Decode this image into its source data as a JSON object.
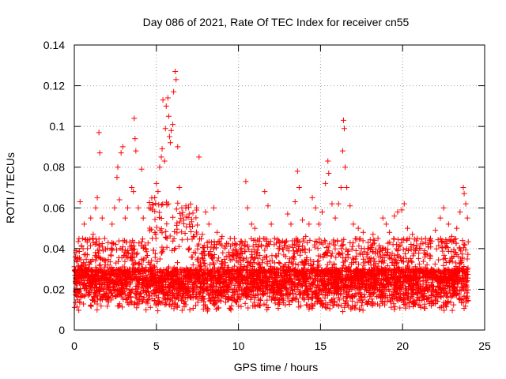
{
  "chart_data": {
    "type": "scatter",
    "title": "Day 086 of 2021, Rate Of TEC Index for receiver cn55",
    "xlabel": "GPS time / hours",
    "ylabel": "ROTI / TECUs",
    "xlim": [
      0,
      25
    ],
    "ylim": [
      0,
      0.14
    ],
    "xticks": [
      0,
      5,
      10,
      15,
      20,
      25
    ],
    "xtick_labels": [
      "0",
      "5",
      "10",
      "15",
      "20",
      "25"
    ],
    "yticks": [
      0,
      0.02,
      0.04,
      0.06,
      0.08,
      0.1,
      0.12,
      0.14
    ],
    "ytick_labels": [
      "0",
      "0.02",
      "0.04",
      "0.06",
      "0.08",
      "0.1",
      "0.12",
      "0.14"
    ],
    "grid": true,
    "marker": "plus",
    "color": "#ff0000",
    "x_coverage_hours": [
      0,
      24
    ],
    "baseline_range": [
      0.005,
      0.03
    ],
    "series": [
      {
        "name": "ROTI",
        "points": [
          [
            0.1,
            0.038
          ],
          [
            0.2,
            0.035
          ],
          [
            0.35,
            0.063
          ],
          [
            0.5,
            0.045
          ],
          [
            0.6,
            0.052
          ],
          [
            0.8,
            0.04
          ],
          [
            1.0,
            0.055
          ],
          [
            1.15,
            0.047
          ],
          [
            1.3,
            0.06
          ],
          [
            1.4,
            0.065
          ],
          [
            1.5,
            0.097
          ],
          [
            1.55,
            0.087
          ],
          [
            1.7,
            0.055
          ],
          [
            1.85,
            0.045
          ],
          [
            2.05,
            0.032
          ],
          [
            2.3,
            0.052
          ],
          [
            2.45,
            0.06
          ],
          [
            2.6,
            0.075
          ],
          [
            2.65,
            0.08
          ],
          [
            2.75,
            0.064
          ],
          [
            2.85,
            0.087
          ],
          [
            2.95,
            0.09
          ],
          [
            3.1,
            0.055
          ],
          [
            3.25,
            0.06
          ],
          [
            3.5,
            0.07
          ],
          [
            3.6,
            0.068
          ],
          [
            3.65,
            0.104
          ],
          [
            3.7,
            0.094
          ],
          [
            3.75,
            0.088
          ],
          [
            3.9,
            0.06
          ],
          [
            4.1,
            0.079
          ],
          [
            4.2,
            0.055
          ],
          [
            4.35,
            0.04
          ],
          [
            4.55,
            0.06
          ],
          [
            4.75,
            0.045
          ],
          [
            4.9,
            0.065
          ],
          [
            5.0,
            0.072
          ],
          [
            5.1,
            0.068
          ],
          [
            5.2,
            0.08
          ],
          [
            5.3,
            0.085
          ],
          [
            5.35,
            0.089
          ],
          [
            5.4,
            0.113
          ],
          [
            5.5,
            0.083
          ],
          [
            5.55,
            0.099
          ],
          [
            5.6,
            0.11
          ],
          [
            5.7,
            0.114
          ],
          [
            5.75,
            0.105
          ],
          [
            5.8,
            0.095
          ],
          [
            5.85,
            0.092
          ],
          [
            5.9,
            0.098
          ],
          [
            6.0,
            0.101
          ],
          [
            6.05,
            0.117
          ],
          [
            6.15,
            0.127
          ],
          [
            6.2,
            0.123
          ],
          [
            6.3,
            0.09
          ],
          [
            6.4,
            0.07
          ],
          [
            6.55,
            0.06
          ],
          [
            6.8,
            0.061
          ],
          [
            7.0,
            0.057
          ],
          [
            7.2,
            0.051
          ],
          [
            7.45,
            0.06
          ],
          [
            7.6,
            0.085
          ],
          [
            7.8,
            0.047
          ],
          [
            8.0,
            0.058
          ],
          [
            8.2,
            0.052
          ],
          [
            8.5,
            0.06
          ],
          [
            8.7,
            0.048
          ],
          [
            9.0,
            0.046
          ],
          [
            9.2,
            0.041
          ],
          [
            9.5,
            0.045
          ],
          [
            9.7,
            0.036
          ],
          [
            9.9,
            0.042
          ],
          [
            10.2,
            0.04
          ],
          [
            10.45,
            0.073
          ],
          [
            10.55,
            0.06
          ],
          [
            10.8,
            0.052
          ],
          [
            11.0,
            0.05
          ],
          [
            11.3,
            0.045
          ],
          [
            11.6,
            0.068
          ],
          [
            11.8,
            0.061
          ],
          [
            12.0,
            0.052
          ],
          [
            12.2,
            0.045
          ],
          [
            12.5,
            0.04
          ],
          [
            12.8,
            0.043
          ],
          [
            13.0,
            0.057
          ],
          [
            13.2,
            0.052
          ],
          [
            13.45,
            0.063
          ],
          [
            13.6,
            0.078
          ],
          [
            13.7,
            0.07
          ],
          [
            13.9,
            0.054
          ],
          [
            14.1,
            0.046
          ],
          [
            14.3,
            0.052
          ],
          [
            14.5,
            0.065
          ],
          [
            14.7,
            0.06
          ],
          [
            14.9,
            0.052
          ],
          [
            15.1,
            0.058
          ],
          [
            15.3,
            0.072
          ],
          [
            15.45,
            0.083
          ],
          [
            15.5,
            0.077
          ],
          [
            15.7,
            0.062
          ],
          [
            15.9,
            0.055
          ],
          [
            16.1,
            0.062
          ],
          [
            16.25,
            0.07
          ],
          [
            16.35,
            0.088
          ],
          [
            16.4,
            0.103
          ],
          [
            16.45,
            0.099
          ],
          [
            16.5,
            0.08
          ],
          [
            16.6,
            0.07
          ],
          [
            16.8,
            0.061
          ],
          [
            17.0,
            0.052
          ],
          [
            17.3,
            0.05
          ],
          [
            17.6,
            0.048
          ],
          [
            17.9,
            0.043
          ],
          [
            18.2,
            0.047
          ],
          [
            18.5,
            0.045
          ],
          [
            18.8,
            0.055
          ],
          [
            19.0,
            0.052
          ],
          [
            19.2,
            0.048
          ],
          [
            19.5,
            0.056
          ],
          [
            19.7,
            0.058
          ],
          [
            19.95,
            0.059
          ],
          [
            20.1,
            0.062
          ],
          [
            20.3,
            0.05
          ],
          [
            20.6,
            0.047
          ],
          [
            20.9,
            0.045
          ],
          [
            21.1,
            0.04
          ],
          [
            21.4,
            0.043
          ],
          [
            21.7,
            0.045
          ],
          [
            22.0,
            0.049
          ],
          [
            22.3,
            0.055
          ],
          [
            22.5,
            0.06
          ],
          [
            22.8,
            0.052
          ],
          [
            23.0,
            0.046
          ],
          [
            23.3,
            0.05
          ],
          [
            23.5,
            0.058
          ],
          [
            23.7,
            0.07
          ],
          [
            23.75,
            0.067
          ],
          [
            23.85,
            0.062
          ],
          [
            23.95,
            0.055
          ]
        ]
      }
    ]
  }
}
